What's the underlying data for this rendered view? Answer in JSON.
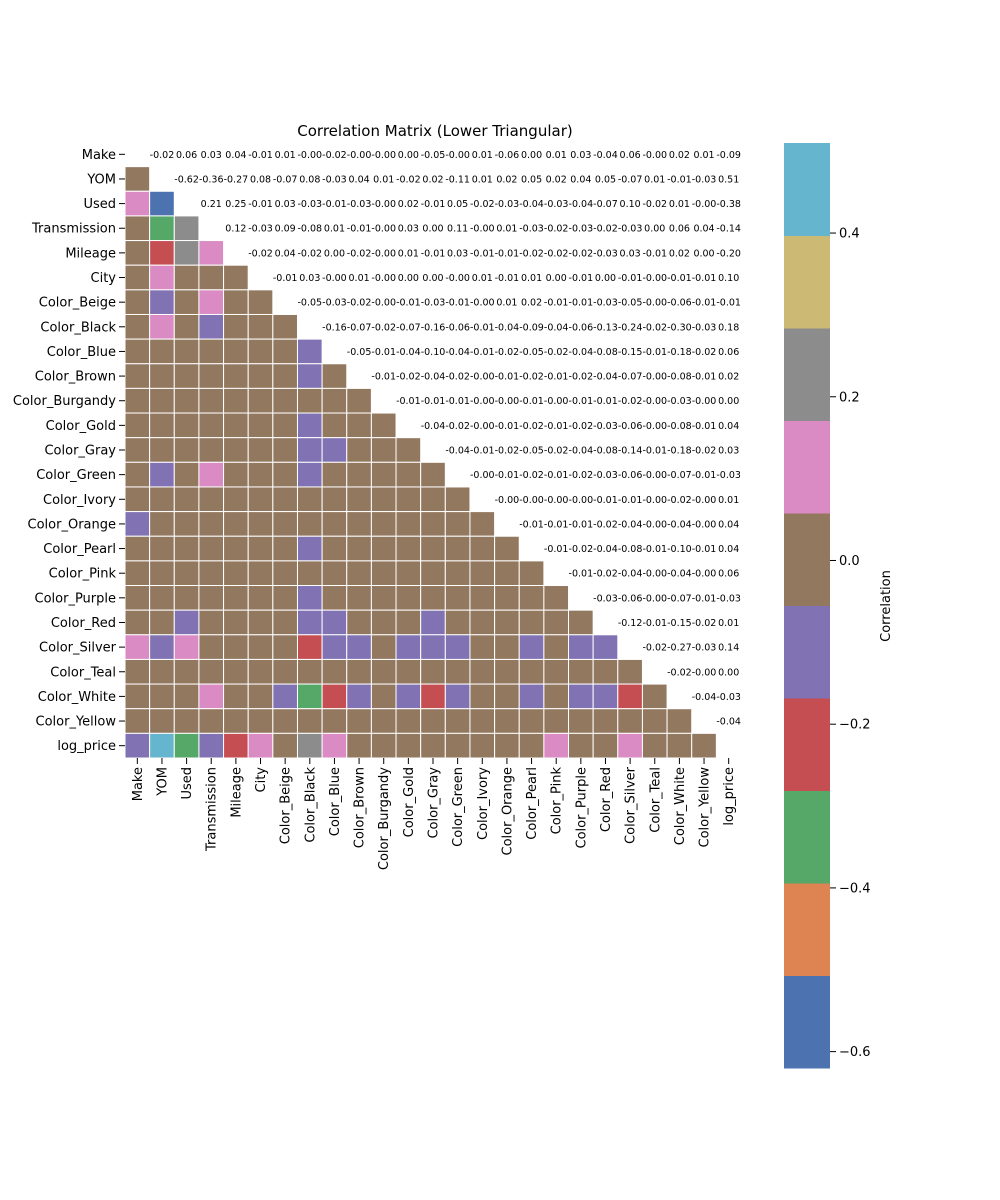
{
  "chart_data": {
    "type": "heatmap",
    "title": "Correlation Matrix (Lower Triangular)",
    "labels": [
      "Make",
      "YOM",
      "Used",
      "Transmission",
      "Mileage",
      "City",
      "Color_Beige",
      "Color_Black",
      "Color_Blue",
      "Color_Brown",
      "Color_Burgandy",
      "Color_Gold",
      "Color_Gray",
      "Color_Green",
      "Color_Ivory",
      "Color_Orange",
      "Color_Pearl",
      "Color_Pink",
      "Color_Purple",
      "Color_Red",
      "Color_Silver",
      "Color_Teal",
      "Color_White",
      "Color_Yellow",
      "log_price"
    ],
    "value_rows": [
      "",
      "-0.02",
      "0.06 -0.62",
      "0.03 -0.36 0.21",
      "0.04 -0.27 0.25 0.12",
      "-0.01 0.08 -0.01 -0.03 -0.02",
      "0.01 -0.07 0.03 0.09 0.04 -0.01",
      "-0.00 0.08 -0.03 -0.08 -0.02 0.03 -0.05",
      "-0.02 -0.03 -0.01 0.01 0.00 -0.00 -0.03 -0.16",
      "-0.00 0.04 -0.03 -0.01 -0.02 0.01 -0.02 -0.07 -0.05",
      "-0.00 0.01 -0.00 -0.00 -0.00 -0.00 -0.00 -0.02 -0.01 -0.01",
      "0.00 -0.02 0.02 0.03 0.01 0.00 -0.01 -0.07 -0.04 -0.02 -0.01",
      "-0.05 0.02 -0.01 0.00 -0.01 0.00 -0.03 -0.16 -0.10 -0.04 -0.01 -0.04",
      "-0.00 -0.11 0.05 0.11 0.03 -0.00 -0.01 -0.06 -0.04 -0.02 -0.01 -0.02 -0.04",
      "0.01 0.01 -0.02 -0.00 -0.01 0.01 -0.00 -0.01 -0.01 -0.00 -0.00 -0.00 -0.01 -0.00",
      "-0.06 0.02 -0.03 0.01 -0.01 -0.01 0.01 -0.04 -0.02 -0.01 -0.00 -0.01 -0.02 -0.01 -0.00",
      "0.00 0.05 -0.04 -0.03 -0.02 0.01 0.02 -0.09 -0.05 -0.02 -0.01 -0.02 -0.05 -0.02 -0.00 -0.01",
      "0.01 0.02 -0.03 -0.02 -0.02 0.00 -0.01 -0.04 -0.02 -0.01 -0.00 -0.01 -0.02 -0.01 -0.00 -0.01 -0.01",
      "0.03 0.04 -0.04 -0.03 -0.02 -0.01 -0.01 -0.06 -0.04 -0.02 -0.01 -0.02 -0.04 -0.02 -0.00 -0.01 -0.02 -0.01",
      "-0.04 0.05 -0.07 -0.02 -0.03 0.00 -0.03 -0.13 -0.08 -0.04 -0.01 -0.03 -0.08 -0.03 -0.01 -0.02 -0.04 -0.02 -0.03",
      "0.06 -0.07 0.10 -0.03 0.03 -0.01 -0.05 -0.24 -0.15 -0.07 -0.02 -0.06 -0.14 -0.06 -0.01 -0.04 -0.08 -0.04 -0.06 -0.12",
      "-0.00 0.01 -0.02 0.00 -0.01 -0.00 -0.00 -0.02 -0.01 -0.00 -0.00 -0.00 -0.01 -0.00 -0.00 -0.00 -0.01 -0.00 -0.00 -0.01 -0.02",
      "0.02 -0.01 0.01 0.06 0.02 -0.01 -0.06 -0.30 -0.18 -0.08 -0.03 -0.08 -0.18 -0.07 -0.02 -0.04 -0.10 -0.04 -0.07 -0.15 -0.27 -0.02",
      "0.01 -0.03 -0.00 0.04 0.00 -0.01 -0.01 -0.03 -0.02 -0.01 -0.00 -0.01 -0.02 -0.01 -0.00 -0.00 -0.01 -0.00 -0.01 -0.02 -0.03 -0.00 -0.04",
      "-0.09 0.51 -0.38 -0.14 -0.20 0.10 -0.01 0.18 0.06 0.02 0.00 0.04 0.03 -0.03 0.01 0.04 0.04 0.06 -0.03 0.01 0.14 0.00 -0.03 -0.04"
    ],
    "colorbar": {
      "label": "Correlation",
      "ticks": [
        "0.4",
        "0.2",
        "0.0",
        "−0.2",
        "−0.4",
        "−0.6"
      ],
      "tick_values": [
        0.4,
        0.2,
        0.0,
        -0.2,
        -0.4,
        -0.6
      ],
      "range": [
        -0.62,
        0.51
      ],
      "bin_colors_low_to_high": [
        "#4c72b0",
        "#dd8452",
        "#55a868",
        "#c44e52",
        "#8172b3",
        "#937860",
        "#da8bc3",
        "#8c8c8c",
        "#ccb974",
        "#64b5cd"
      ]
    }
  }
}
